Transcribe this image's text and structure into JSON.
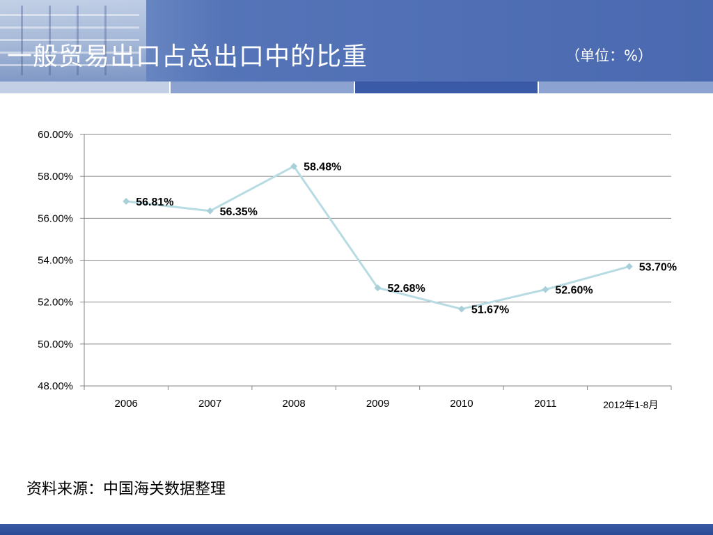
{
  "slide": {
    "title": "一般贸易出口占总出口中的比重",
    "unit": "（单位：%）",
    "source": "资料来源：中国海关数据整理"
  },
  "colors": {
    "header": "#4a69b0",
    "line": "#b7dbe3",
    "marker": "#a9cfd8",
    "grid": "#868686",
    "footer": "#2c4b96"
  },
  "chart_data": {
    "type": "line",
    "title": "",
    "xlabel": "",
    "ylabel": "",
    "categories": [
      "2006",
      "2007",
      "2008",
      "2009",
      "2010",
      "2011",
      "2012年1-8月"
    ],
    "series": [
      {
        "values": [
          56.81,
          56.35,
          58.48,
          52.68,
          51.67,
          52.6,
          53.7
        ],
        "labels": [
          "56.81%",
          "56.35%",
          "58.48%",
          "52.68%",
          "51.67%",
          "52.60%",
          "53.70%"
        ]
      }
    ],
    "ylim": [
      48,
      60
    ],
    "yticks": [
      "48.00%",
      "50.00%",
      "52.00%",
      "54.00%",
      "56.00%",
      "58.00%",
      "60.00%"
    ],
    "grid": true,
    "legend": "none"
  }
}
